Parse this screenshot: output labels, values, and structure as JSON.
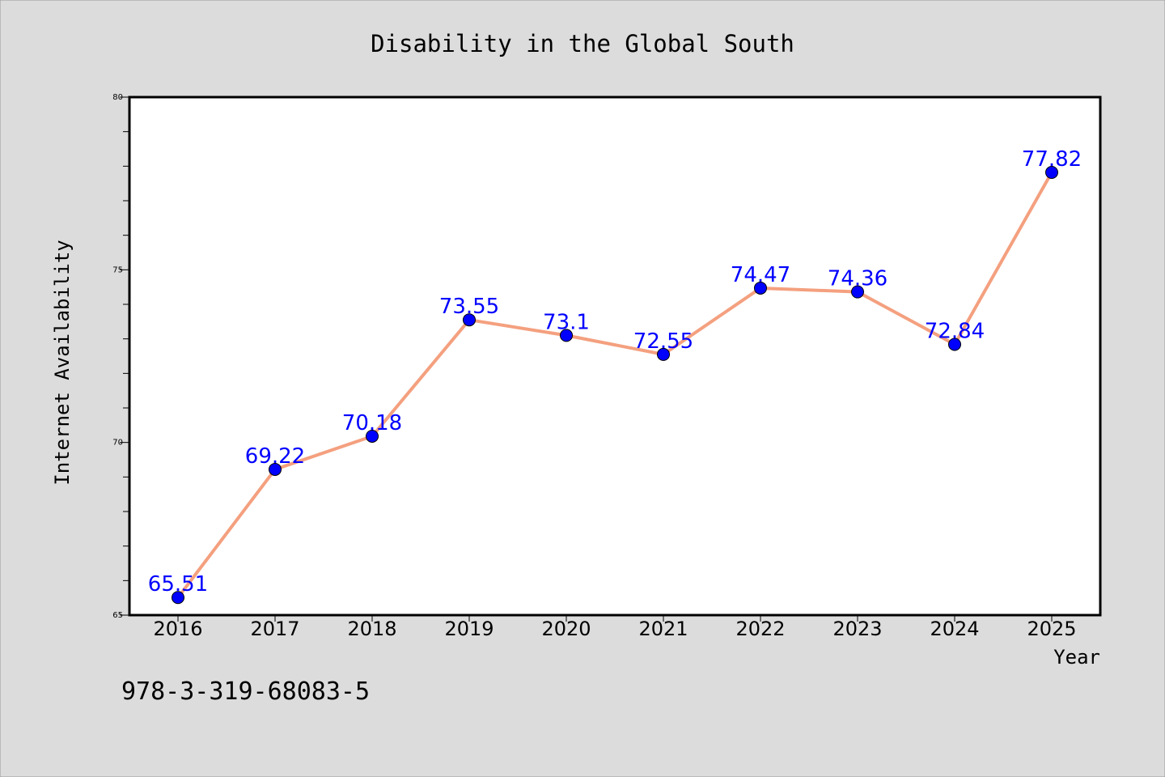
{
  "chart_data": {
    "type": "line",
    "title": "Disability in the Global South",
    "xlabel": "Year",
    "ylabel": "Internet Availability",
    "x": [
      "2016",
      "2017",
      "2018",
      "2019",
      "2020",
      "2021",
      "2022",
      "2023",
      "2024",
      "2025"
    ],
    "series": [
      {
        "values": [
          65.51,
          69.22,
          70.18,
          73.55,
          73.1,
          72.55,
          74.47,
          74.36,
          72.84,
          77.82
        ]
      }
    ],
    "ylim": [
      65,
      80
    ],
    "y_ticks": [
      65,
      70,
      75,
      80
    ],
    "data_labels": [
      "65.51",
      "69.22",
      "70.18",
      "73.55",
      "73.1",
      "72.55",
      "74.47",
      "74.36",
      "72.84",
      "77.82"
    ],
    "grid": false,
    "legend": "none",
    "colors": {
      "background": "#dcdcdc",
      "plot_area": "#ffffff",
      "line": "#f4a07f",
      "marker": "#0000ff",
      "data_label": "#0000ff",
      "text": "#000000"
    }
  },
  "footer_text": "978-3-319-68083-5"
}
